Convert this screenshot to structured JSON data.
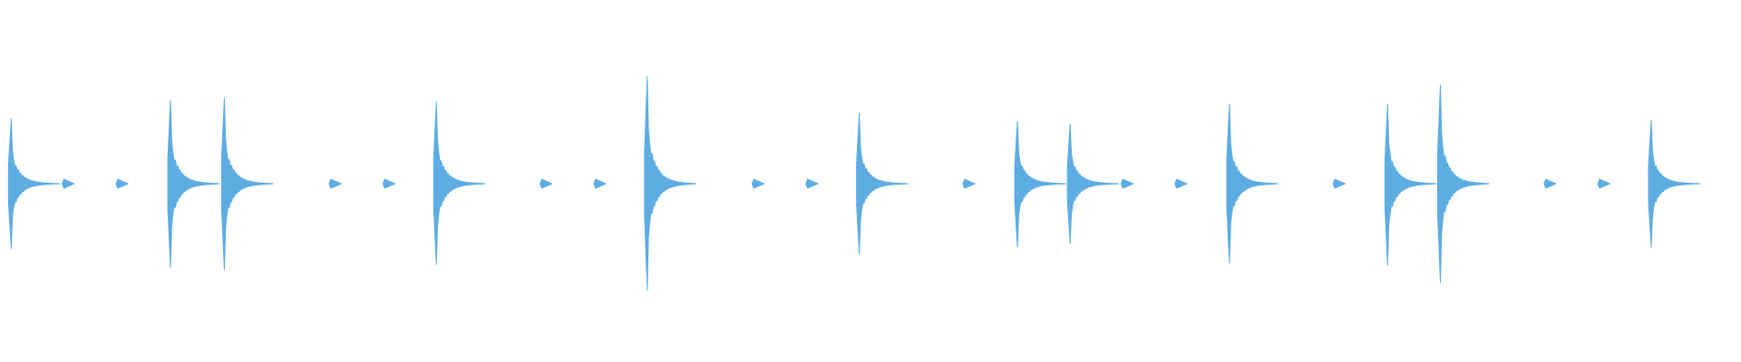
{
  "waveform": {
    "color": "#5dade2"
  }
}
